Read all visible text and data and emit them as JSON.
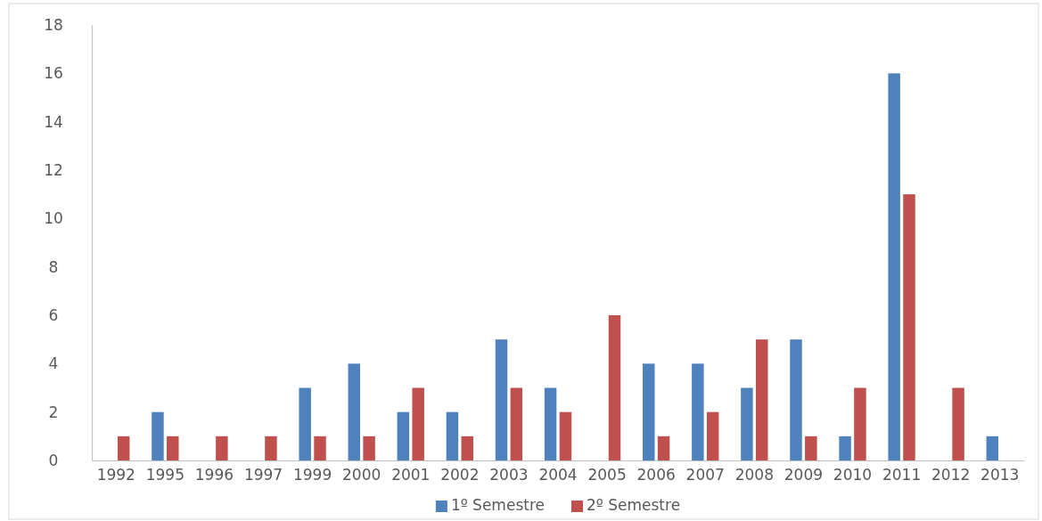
{
  "chart_data": {
    "type": "bar",
    "categories": [
      "1992",
      "1995",
      "1996",
      "1997",
      "1999",
      "2000",
      "2001",
      "2002",
      "2003",
      "2004",
      "2005",
      "2006",
      "2007",
      "2008",
      "2009",
      "2010",
      "2011",
      "2012",
      "2013"
    ],
    "series": [
      {
        "name": "1º Semestre",
        "color": "#4f81bd",
        "values": [
          0,
          2,
          0,
          0,
          3,
          4,
          2,
          2,
          5,
          3,
          0,
          4,
          4,
          3,
          5,
          1,
          16,
          0,
          1
        ]
      },
      {
        "name": "2º Semestre",
        "color": "#c0504d",
        "values": [
          1,
          1,
          1,
          1,
          1,
          1,
          3,
          1,
          3,
          2,
          6,
          1,
          2,
          5,
          1,
          3,
          11,
          3,
          0
        ]
      }
    ],
    "ylim": [
      0,
      18
    ],
    "yticks": [
      0,
      2,
      4,
      6,
      8,
      10,
      12,
      14,
      16,
      18
    ],
    "grid": false,
    "legend": "bottom"
  }
}
